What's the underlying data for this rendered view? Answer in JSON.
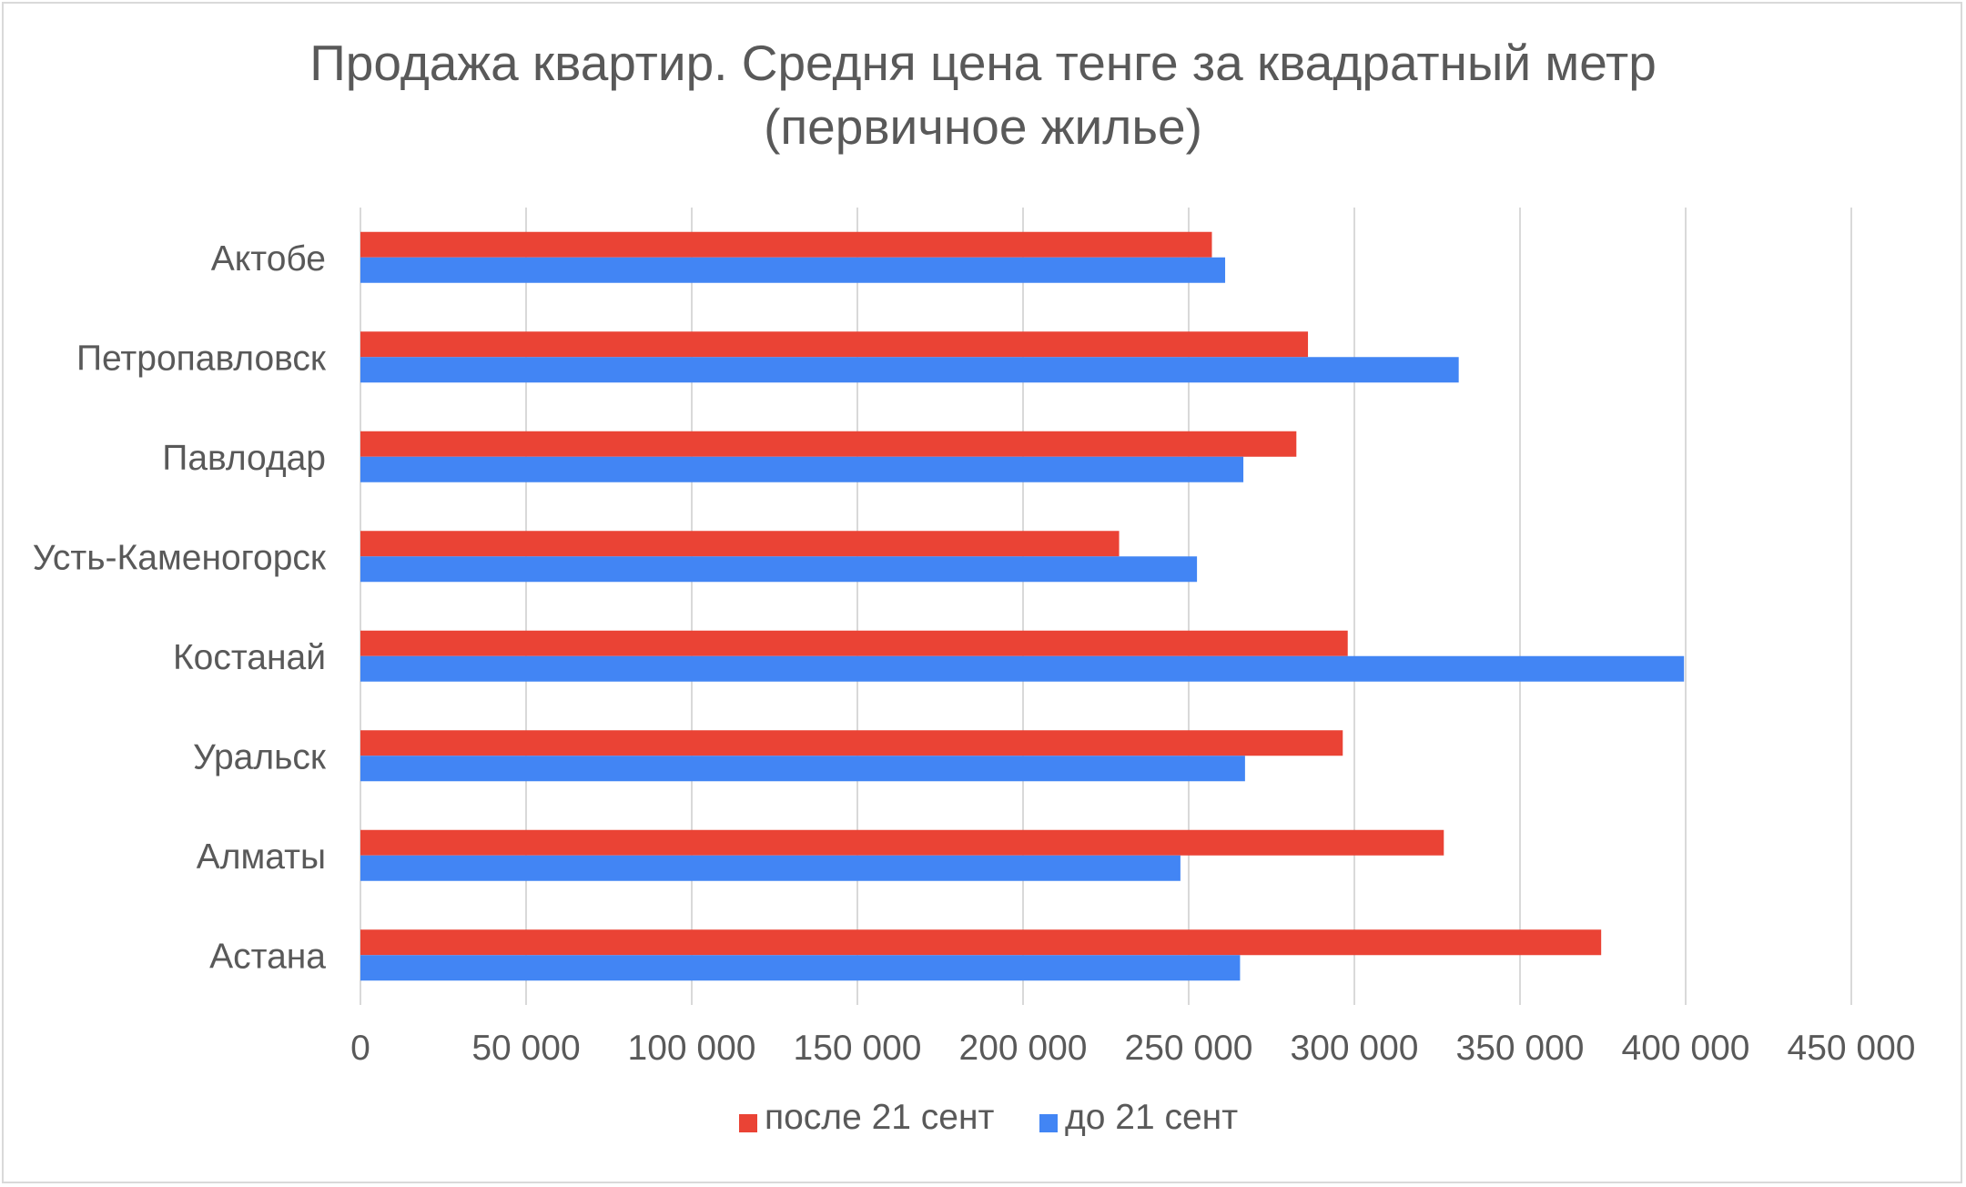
{
  "colors": {
    "after": "#ea4335",
    "before": "#4285f4",
    "grid": "#d9d9d9",
    "text": "#595959",
    "border": "#d9d9d9"
  },
  "chart_data": {
    "type": "bar",
    "orientation": "horizontal",
    "title_line1": "Продажа квартир. Средня цена тенге за квадратный метр",
    "title_line2": "(первичное жилье)",
    "categories": [
      "Актобе",
      "Петропавловск",
      "Павлодар",
      "Усть-Каменогорск",
      "Костанай",
      "Уральск",
      "Алматы",
      "Астана"
    ],
    "series": [
      {
        "name": "после 21 сент",
        "color": "#ea4335",
        "values": [
          257000,
          286000,
          282500,
          229000,
          298000,
          296500,
          327000,
          374500
        ]
      },
      {
        "name": "до 21 сент",
        "color": "#4285f4",
        "values": [
          261000,
          331500,
          266500,
          252500,
          399500,
          267000,
          247500,
          265500
        ]
      }
    ],
    "xlim": [
      0,
      450000
    ],
    "ticks": [
      0,
      50000,
      100000,
      150000,
      200000,
      250000,
      300000,
      350000,
      400000,
      450000
    ],
    "tick_labels": [
      "0",
      "50 000",
      "100 000",
      "150 000",
      "200 000",
      "250 000",
      "300 000",
      "350 000",
      "400 000",
      "450 000"
    ],
    "grid": "vertical",
    "legend_position": "bottom"
  }
}
